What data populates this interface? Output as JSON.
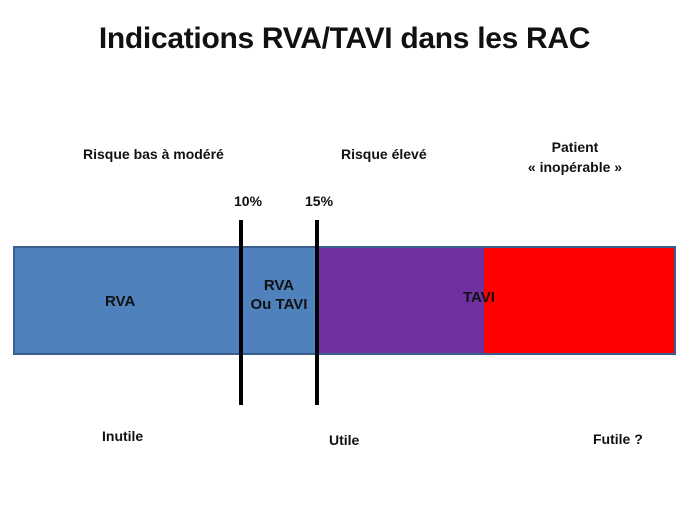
{
  "title": "Indications RVA/TAVI dans les RAC",
  "risk_labels": {
    "low": "Risque bas à modéré",
    "high": "Risque élevé",
    "inoperable_line1": "Patient",
    "inoperable_line2": "« inopérable »"
  },
  "thresholds": {
    "t1": "10%",
    "t2": "15%"
  },
  "segments": {
    "rva": "RVA",
    "rva_or_tavi_line1": "RVA",
    "rva_or_tavi_line2": "Ou TAVI",
    "tavi": "TAVI"
  },
  "outcomes": {
    "useless": "Inutile",
    "useful": "Utile",
    "futile": "Futile ?"
  },
  "colors": {
    "rva": "#4f81bd",
    "tavi_high_risk": "#7030a0",
    "inoperable": "#ff0000",
    "threshold_line": "#000000"
  }
}
